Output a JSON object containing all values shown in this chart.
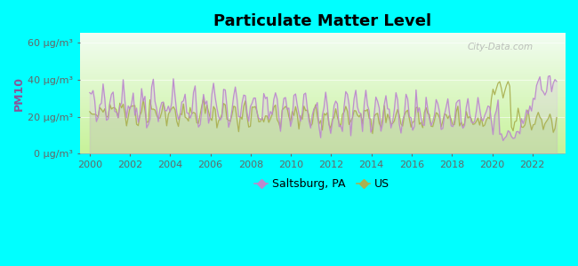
{
  "title": "Particulate Matter Level",
  "ylabel": "PM10",
  "background_color": "#00FFFF",
  "saltsburg_color": "#bb88cc",
  "us_color": "#aab050",
  "ylim": [
    0,
    65
  ],
  "yticks": [
    0,
    20,
    40,
    60
  ],
  "ytick_labels": [
    "0 μg/m³",
    "20 μg/m³",
    "40 μg/m³",
    "60 μg/m³"
  ],
  "xstart": 1999.5,
  "xend": 2023.6,
  "xticks": [
    2000,
    2002,
    2004,
    2006,
    2008,
    2010,
    2012,
    2014,
    2016,
    2018,
    2020,
    2022
  ],
  "legend_saltsburg": "Saltsburg, PA",
  "legend_us": "US",
  "watermark": "City-Data.com",
  "ylabel_color": "#885599",
  "tick_color": "#666666",
  "title_fontsize": 13,
  "tick_fontsize": 8,
  "ylabel_fontsize": 9
}
